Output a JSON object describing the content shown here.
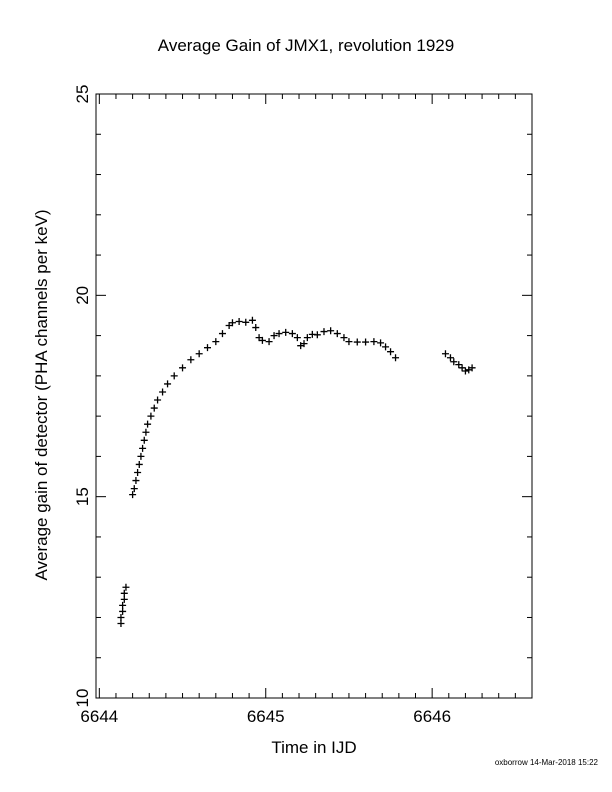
{
  "chart_data": {
    "type": "scatter",
    "title": "Average Gain of JMX1, revolution 1929",
    "xlabel": "Time in IJD",
    "ylabel": "Average gain of detector (PHA channels per keV)",
    "xlim": [
      6643.98,
      6646.6
    ],
    "ylim": [
      10,
      25
    ],
    "xticks": [
      6644,
      6645,
      6646
    ],
    "yticks": [
      10,
      15,
      20,
      25
    ],
    "marker": "+",
    "color": "#000000",
    "grid": false,
    "points": [
      [
        6644.13,
        11.85
      ],
      [
        6644.13,
        12.0
      ],
      [
        6644.14,
        12.15
      ],
      [
        6644.14,
        12.3
      ],
      [
        6644.15,
        12.45
      ],
      [
        6644.15,
        12.6
      ],
      [
        6644.16,
        12.75
      ],
      [
        6644.2,
        15.05
      ],
      [
        6644.21,
        15.2
      ],
      [
        6644.22,
        15.4
      ],
      [
        6644.23,
        15.6
      ],
      [
        6644.24,
        15.8
      ],
      [
        6644.25,
        16.0
      ],
      [
        6644.26,
        16.2
      ],
      [
        6644.27,
        16.4
      ],
      [
        6644.28,
        16.6
      ],
      [
        6644.29,
        16.8
      ],
      [
        6644.31,
        17.0
      ],
      [
        6644.33,
        17.2
      ],
      [
        6644.35,
        17.4
      ],
      [
        6644.38,
        17.6
      ],
      [
        6644.41,
        17.8
      ],
      [
        6644.45,
        18.0
      ],
      [
        6644.5,
        18.2
      ],
      [
        6644.55,
        18.4
      ],
      [
        6644.6,
        18.55
      ],
      [
        6644.65,
        18.7
      ],
      [
        6644.7,
        18.85
      ],
      [
        6644.74,
        19.05
      ],
      [
        6644.78,
        19.25
      ],
      [
        6644.8,
        19.32
      ],
      [
        6644.84,
        19.35
      ],
      [
        6644.88,
        19.33
      ],
      [
        6644.92,
        19.38
      ],
      [
        6644.94,
        19.2
      ],
      [
        6644.96,
        18.95
      ],
      [
        6644.98,
        18.88
      ],
      [
        6645.02,
        18.85
      ],
      [
        6645.05,
        19.0
      ],
      [
        6645.08,
        19.05
      ],
      [
        6645.12,
        19.08
      ],
      [
        6645.16,
        19.05
      ],
      [
        6645.19,
        18.95
      ],
      [
        6645.21,
        18.75
      ],
      [
        6645.23,
        18.8
      ],
      [
        6645.25,
        18.95
      ],
      [
        6645.28,
        19.03
      ],
      [
        6645.31,
        19.02
      ],
      [
        6645.35,
        19.1
      ],
      [
        6645.39,
        19.12
      ],
      [
        6645.43,
        19.05
      ],
      [
        6645.47,
        18.95
      ],
      [
        6645.5,
        18.85
      ],
      [
        6645.55,
        18.84
      ],
      [
        6645.6,
        18.84
      ],
      [
        6645.65,
        18.85
      ],
      [
        6645.69,
        18.82
      ],
      [
        6645.72,
        18.72
      ],
      [
        6645.75,
        18.6
      ],
      [
        6645.78,
        18.45
      ],
      [
        6646.08,
        18.55
      ],
      [
        6646.11,
        18.45
      ],
      [
        6646.13,
        18.35
      ],
      [
        6646.16,
        18.28
      ],
      [
        6646.18,
        18.2
      ],
      [
        6646.2,
        18.12
      ],
      [
        6646.22,
        18.15
      ],
      [
        6646.24,
        18.2
      ]
    ]
  },
  "footer": "oxborrow 14-Mar-2018 15:22"
}
